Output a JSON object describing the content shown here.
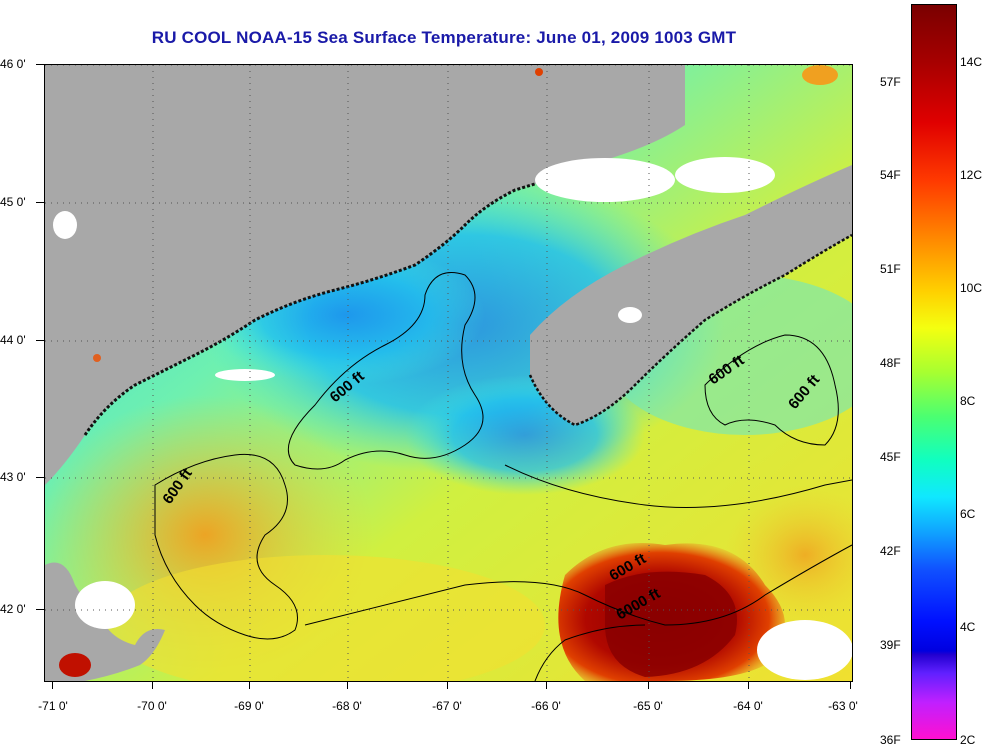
{
  "title": "RU COOL  NOAA-15  Sea Surface Temperature:  June 01, 2009 1003 GMT",
  "latitude_labels": [
    "46 0'",
    "45 0'",
    "44 0'",
    "43 0'",
    "42 0'"
  ],
  "longitude_labels": [
    "-71 0'",
    "-70 0'",
    "-69 0'",
    "-68 0'",
    "-67 0'",
    "-66 0'",
    "-65 0'",
    "-64 0'",
    "-63 0'"
  ],
  "contour_labels": [
    "600 ft",
    "600 ft",
    "600 ft",
    "600 ft",
    "600 ft",
    "6000 ft"
  ],
  "colorbar": {
    "fahrenheit_labels": [
      "57F",
      "54F",
      "51F",
      "48F",
      "45F",
      "42F",
      "39F",
      "36F"
    ],
    "celsius_labels": [
      "14C",
      "12C",
      "10C",
      "8C",
      "6C",
      "4C",
      "2C"
    ]
  },
  "colors": {
    "land": "#a8a8a8",
    "cloud": "#ffffff",
    "title": "#1a1aa8",
    "cold_water": "#20b8f0",
    "mid_water": "#8ef070",
    "warm_water": "#f4e830",
    "hot_water": "#a00000"
  }
}
